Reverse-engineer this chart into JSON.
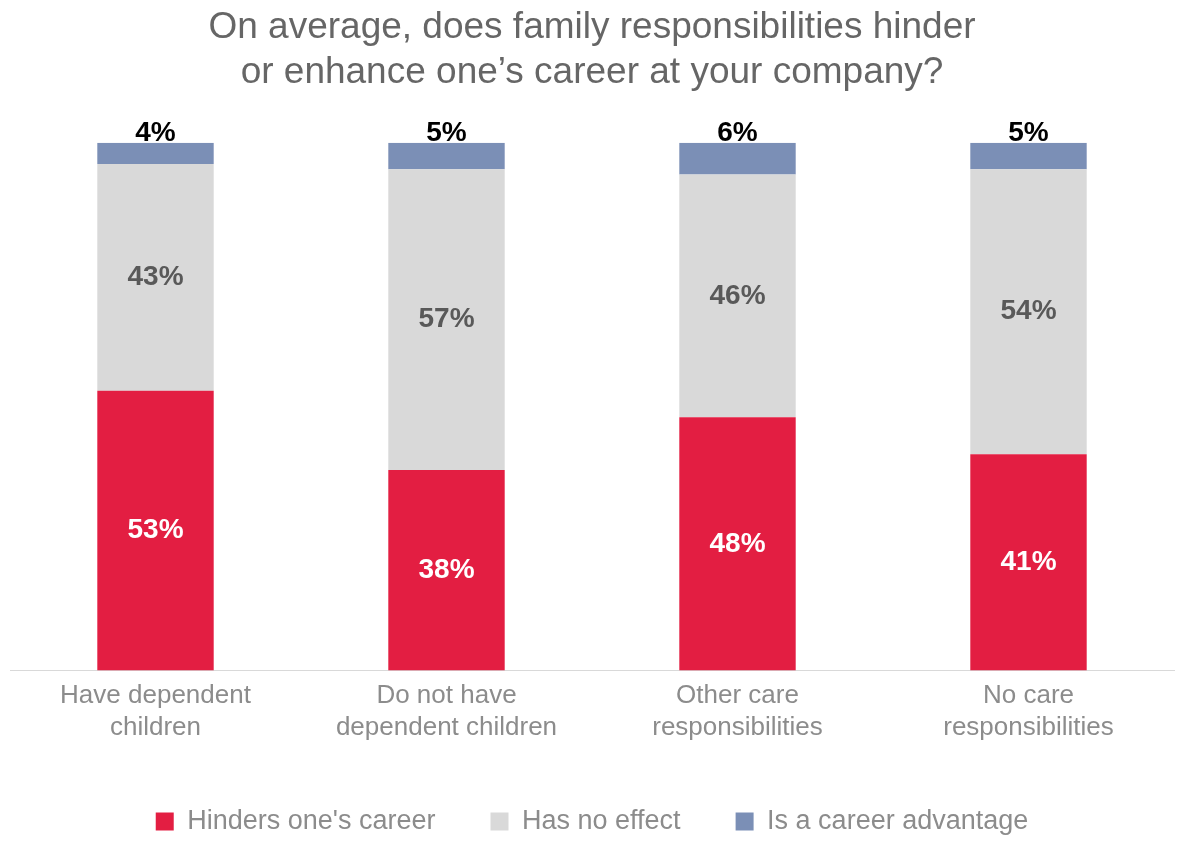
{
  "chart_data": {
    "type": "bar",
    "stacked": true,
    "title": "On average, does family responsibilities hinder\nor enhance one’s career at your company?",
    "categories": [
      "Have dependent children",
      "Do not have dependent children",
      "Other care responsibilities",
      "No care responsibilities"
    ],
    "series": [
      {
        "name": "Hinders one's career",
        "color": "#e31e42",
        "values": [
          53,
          38,
          48,
          41
        ],
        "value_labels": [
          "53%",
          "38%",
          "48%",
          "41%"
        ]
      },
      {
        "name": "Has no effect",
        "color": "#d9d9d9",
        "values": [
          43,
          57,
          46,
          54
        ],
        "value_labels": [
          "43%",
          "57%",
          "46%",
          "54%"
        ]
      },
      {
        "name": "Is a career advantage",
        "color": "#7b8fb6",
        "values": [
          4,
          5,
          6,
          5
        ],
        "value_labels": [
          "4%",
          "5%",
          "6%",
          "5%"
        ]
      }
    ],
    "legend": "bottom",
    "grid": false
  }
}
